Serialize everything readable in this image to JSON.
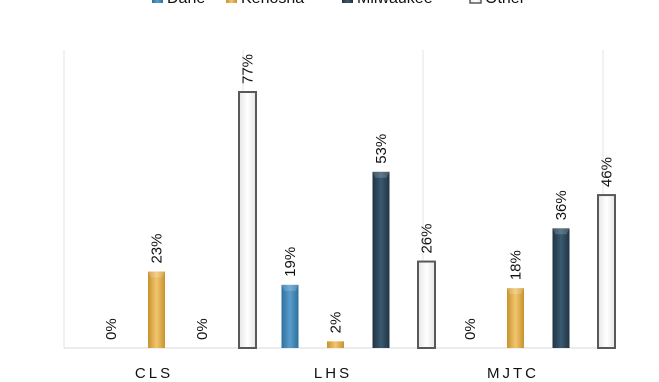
{
  "chart_data": {
    "type": "bar",
    "categories": [
      "CLS",
      "LHS",
      "MJTC"
    ],
    "series": [
      {
        "name": "Dane",
        "values": [
          0,
          19,
          0
        ],
        "labels": [
          "0%",
          "19%",
          "0%"
        ],
        "color": "#4a8fc0"
      },
      {
        "name": "Kenosha",
        "values": [
          23,
          2,
          18
        ],
        "labels": [
          "23%",
          "2%",
          "18%"
        ],
        "color": "#e8b85a"
      },
      {
        "name": "Milwaukee",
        "values": [
          0,
          53,
          36
        ],
        "labels": [
          "0%",
          "53%",
          "36%"
        ],
        "color": "#2f4b5e"
      },
      {
        "name": "Other",
        "values": [
          77,
          26,
          46
        ],
        "labels": [
          "77%",
          "26%",
          "46%"
        ],
        "color": "#ffffff"
      }
    ],
    "ylim": [
      0,
      80
    ],
    "grid": false,
    "legend_position": "top"
  }
}
